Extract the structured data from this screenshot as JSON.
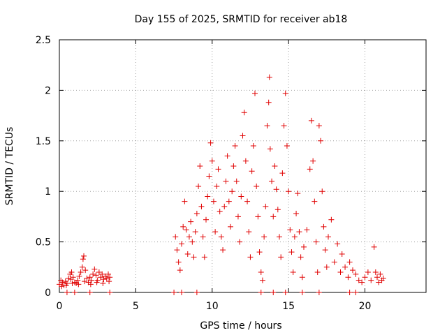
{
  "chart_data": {
    "type": "scatter",
    "title": "Day 155 of 2025, SRMTID for receiver ab18",
    "xlabel": "GPS time / hours",
    "ylabel": "SRMTID / TECUs",
    "xlim": [
      0,
      24
    ],
    "ylim": [
      0,
      2.5
    ],
    "xticks": [
      0,
      5,
      10,
      15,
      20
    ],
    "xtick_labels": [
      "0",
      "5",
      "10",
      "15",
      "20"
    ],
    "yticks": [
      0,
      0.5,
      1,
      1.5,
      2,
      2.5
    ],
    "ytick_labels": [
      "0",
      "0.5",
      "1",
      "1.5",
      "2",
      "2.5"
    ],
    "grid": true,
    "series": [
      {
        "name": "SRMTID",
        "marker": "plus",
        "color": "#e00000",
        "points": [
          [
            0.0,
            0.08
          ],
          [
            0.1,
            0.12
          ],
          [
            0.2,
            0.1
          ],
          [
            0.3,
            0.07
          ],
          [
            0.4,
            0.11
          ],
          [
            0.5,
            0.09
          ],
          [
            0.6,
            0.14
          ],
          [
            0.7,
            0.18
          ],
          [
            0.75,
            0.13
          ],
          [
            0.8,
            0.2
          ],
          [
            0.9,
            0.15
          ],
          [
            1.0,
            0.1
          ],
          [
            1.1,
            0.09
          ],
          [
            1.2,
            0.12
          ],
          [
            1.3,
            0.16
          ],
          [
            1.4,
            0.2
          ],
          [
            1.5,
            0.25
          ],
          [
            1.55,
            0.33
          ],
          [
            1.6,
            0.36
          ],
          [
            1.7,
            0.22
          ],
          [
            1.8,
            0.14
          ],
          [
            1.9,
            0.1
          ],
          [
            2.0,
            0.15
          ],
          [
            2.1,
            0.12
          ],
          [
            2.2,
            0.18
          ],
          [
            2.3,
            0.23
          ],
          [
            2.4,
            0.17
          ],
          [
            2.5,
            0.12
          ],
          [
            2.6,
            0.2
          ],
          [
            2.7,
            0.15
          ],
          [
            2.8,
            0.18
          ],
          [
            2.9,
            0.13
          ],
          [
            3.0,
            0.16
          ],
          [
            3.1,
            0.14
          ],
          [
            3.2,
            0.18
          ],
          [
            3.3,
            0.15
          ],
          [
            0.15,
            0.06
          ],
          [
            0.45,
            0.07
          ],
          [
            0.85,
            0.09
          ],
          [
            1.25,
            0.08
          ],
          [
            1.65,
            0.11
          ],
          [
            2.05,
            0.08
          ],
          [
            2.45,
            0.1
          ],
          [
            2.85,
            0.09
          ],
          [
            3.25,
            0.11
          ],
          [
            7.6,
            0.55
          ],
          [
            7.7,
            0.42
          ],
          [
            7.8,
            0.3
          ],
          [
            7.9,
            0.22
          ],
          [
            8.0,
            0.48
          ],
          [
            8.1,
            0.65
          ],
          [
            8.2,
            0.9
          ],
          [
            8.3,
            0.62
          ],
          [
            8.4,
            0.38
          ],
          [
            8.5,
            0.55
          ],
          [
            8.6,
            0.7
          ],
          [
            8.7,
            0.5
          ],
          [
            8.8,
            0.35
          ],
          [
            8.9,
            0.6
          ],
          [
            9.0,
            0.78
          ],
          [
            9.1,
            1.05
          ],
          [
            9.2,
            1.25
          ],
          [
            9.3,
            0.85
          ],
          [
            9.4,
            0.55
          ],
          [
            9.5,
            0.35
          ],
          [
            9.6,
            0.72
          ],
          [
            9.7,
            0.95
          ],
          [
            9.8,
            1.15
          ],
          [
            9.9,
            1.48
          ],
          [
            10.0,
            1.3
          ],
          [
            10.1,
            0.9
          ],
          [
            10.2,
            0.6
          ],
          [
            10.3,
            1.05
          ],
          [
            10.4,
            1.22
          ],
          [
            10.5,
            0.8
          ],
          [
            10.6,
            0.55
          ],
          [
            10.7,
            0.42
          ],
          [
            10.8,
            0.85
          ],
          [
            10.9,
            1.1
          ],
          [
            11.0,
            1.35
          ],
          [
            11.1,
            0.9
          ],
          [
            11.2,
            0.65
          ],
          [
            11.3,
            1.0
          ],
          [
            11.4,
            1.25
          ],
          [
            11.5,
            1.45
          ],
          [
            11.6,
            1.1
          ],
          [
            11.7,
            0.75
          ],
          [
            11.8,
            0.5
          ],
          [
            11.9,
            0.95
          ],
          [
            12.0,
            1.55
          ],
          [
            12.1,
            1.78
          ],
          [
            12.2,
            1.3
          ],
          [
            12.3,
            0.9
          ],
          [
            12.4,
            0.6
          ],
          [
            12.5,
            0.35
          ],
          [
            12.6,
            1.2
          ],
          [
            12.7,
            1.45
          ],
          [
            12.8,
            1.97
          ],
          [
            12.9,
            1.05
          ],
          [
            13.0,
            0.75
          ],
          [
            13.1,
            0.4
          ],
          [
            13.2,
            0.2
          ],
          [
            13.3,
            0.12
          ],
          [
            13.4,
            0.55
          ],
          [
            13.5,
            0.85
          ],
          [
            13.6,
            1.65
          ],
          [
            13.7,
            1.88
          ],
          [
            13.75,
            2.13
          ],
          [
            13.8,
            1.42
          ],
          [
            13.9,
            1.1
          ],
          [
            14.0,
            0.75
          ],
          [
            14.1,
            1.25
          ],
          [
            14.2,
            1.02
          ],
          [
            14.3,
            0.82
          ],
          [
            14.4,
            0.55
          ],
          [
            14.5,
            0.35
          ],
          [
            14.6,
            1.18
          ],
          [
            14.7,
            1.65
          ],
          [
            14.8,
            1.97
          ],
          [
            14.9,
            1.45
          ],
          [
            15.0,
            1.0
          ],
          [
            15.1,
            0.62
          ],
          [
            15.2,
            0.4
          ],
          [
            15.3,
            0.2
          ],
          [
            15.4,
            0.55
          ],
          [
            15.5,
            0.78
          ],
          [
            15.6,
            0.98
          ],
          [
            15.7,
            0.6
          ],
          [
            15.8,
            0.35
          ],
          [
            15.9,
            0.15
          ],
          [
            16.0,
            0.45
          ],
          [
            16.2,
            0.62
          ],
          [
            16.4,
            1.22
          ],
          [
            16.5,
            1.7
          ],
          [
            16.6,
            1.3
          ],
          [
            16.7,
            0.9
          ],
          [
            16.8,
            0.5
          ],
          [
            16.9,
            0.2
          ],
          [
            17.0,
            1.65
          ],
          [
            17.1,
            1.5
          ],
          [
            17.2,
            1.0
          ],
          [
            17.3,
            0.65
          ],
          [
            17.4,
            0.42
          ],
          [
            17.5,
            0.25
          ],
          [
            17.6,
            0.55
          ],
          [
            17.8,
            0.72
          ],
          [
            18.0,
            0.3
          ],
          [
            18.2,
            0.48
          ],
          [
            18.4,
            0.2
          ],
          [
            18.5,
            0.38
          ],
          [
            18.7,
            0.25
          ],
          [
            18.9,
            0.15
          ],
          [
            19.0,
            0.3
          ],
          [
            19.2,
            0.22
          ],
          [
            19.4,
            0.18
          ],
          [
            19.6,
            0.12
          ],
          [
            19.8,
            0.1
          ],
          [
            20.0,
            0.15
          ],
          [
            20.2,
            0.2
          ],
          [
            20.4,
            0.12
          ],
          [
            20.6,
            0.45
          ],
          [
            20.7,
            0.2
          ],
          [
            20.8,
            0.15
          ],
          [
            20.9,
            0.1
          ],
          [
            21.0,
            0.18
          ],
          [
            21.1,
            0.12
          ],
          [
            21.2,
            0.14
          ],
          [
            0.5,
            0.0
          ],
          [
            1.0,
            0.0
          ],
          [
            2.0,
            0.0
          ],
          [
            3.3,
            0.0
          ],
          [
            7.5,
            0.0
          ],
          [
            8.0,
            0.0
          ],
          [
            9.0,
            0.0
          ],
          [
            13.2,
            0.0
          ],
          [
            14.0,
            0.0
          ],
          [
            14.8,
            0.0
          ],
          [
            15.9,
            0.0
          ],
          [
            17.0,
            0.0
          ],
          [
            19.0,
            0.0
          ],
          [
            19.4,
            0.0
          ]
        ]
      }
    ]
  }
}
